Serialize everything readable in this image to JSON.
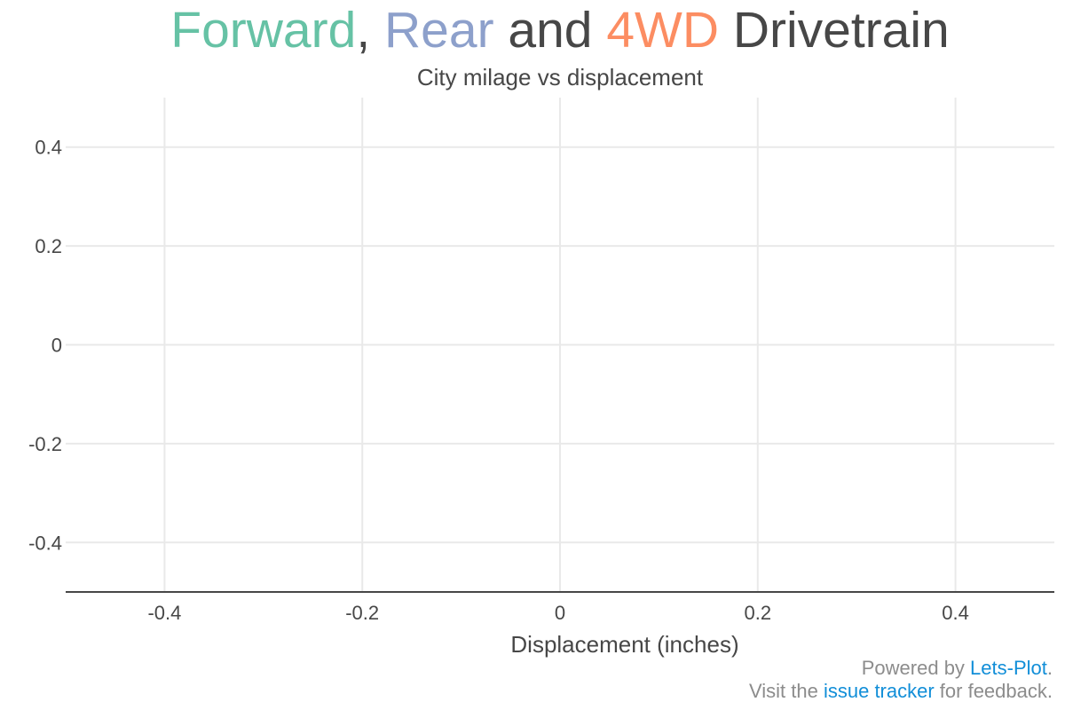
{
  "title_parts": {
    "forward": "Forward",
    "sep1": ", ",
    "rear": "Rear",
    "mid": " and ",
    "fwd4": "4WD",
    "tail": " Drivetrain"
  },
  "colors": {
    "forward": "#66c2a5",
    "rear": "#8da0cb",
    "fwd4": "#fc8d62",
    "text": "#474747",
    "grid": "#e9e9e9",
    "axis": "#474747",
    "caption": "#8c8c8c",
    "link": "#118ed8"
  },
  "caption": {
    "line1_prefix": "Powered by ",
    "line1_link": "Lets-Plot",
    "line1_suffix": ".",
    "line2_prefix": "Visit the ",
    "line2_link": "issue tracker",
    "line2_suffix": " for feedback."
  },
  "chart_data": {
    "type": "scatter",
    "title": "Forward, Rear and 4WD Drivetrain",
    "subtitle": "City milage vs displacement",
    "xlabel": "Displacement (inches)",
    "ylabel": "",
    "xlim": [
      -0.5,
      0.5
    ],
    "ylim": [
      -0.5,
      0.5
    ],
    "x_ticks": [
      -0.4,
      -0.2,
      0,
      0.2,
      0.4
    ],
    "x_tick_labels": [
      "-0.4",
      "-0.2",
      "0",
      "0.2",
      "0.4"
    ],
    "y_ticks": [
      0.4,
      0.2,
      0,
      -0.2,
      -0.4
    ],
    "y_tick_labels": [
      "0.4",
      "0.2",
      "0",
      "-0.2",
      "-0.4"
    ],
    "grid": true,
    "series": []
  }
}
